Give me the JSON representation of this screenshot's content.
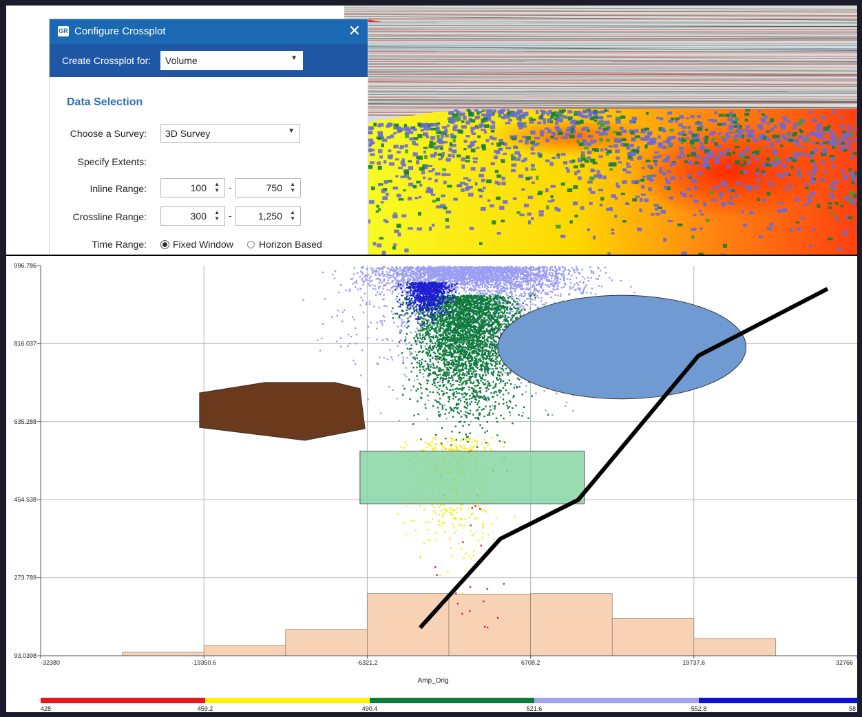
{
  "dialog": {
    "title": "Configure Crossplot",
    "app_icon_text": "GR",
    "close_glyph": "✕",
    "create_for_label": "Create Crossplot for:",
    "create_for_value": "Volume",
    "section_title": "Data Selection",
    "survey_label": "Choose a Survey:",
    "survey_value": "3D Survey",
    "extents_label": "Specify Extents:",
    "inline_label": "Inline Range:",
    "inline_from": "100",
    "inline_to": "750",
    "crossline_label": "Crossline Range:",
    "crossline_from": "300",
    "crossline_to": "1,250",
    "time_label": "Time Range:",
    "time_options": [
      "Fixed Window",
      "Horizon Based"
    ],
    "time_selected": "Fixed Window",
    "range_separator": "-",
    "dropdown_glyph": "▼",
    "spinner_glyph": "▲▼"
  },
  "icons": {
    "close": "close-icon",
    "dropdown": "chevron-down-icon",
    "spinner": "spinner-arrows-icon"
  },
  "chart_data": {
    "type": "scatter",
    "xlabel": "Amp_Orig",
    "ylabel": "",
    "xlim": [
      -32380,
      32766
    ],
    "ylim": [
      93.0398,
      996.786
    ],
    "x_ticks": [
      "-32380",
      "-19350.6",
      "-6321.2",
      "6708.2",
      "19737.6",
      "32766"
    ],
    "x_tick_values": [
      -32380,
      -19350.6,
      -6321.2,
      6708.2,
      19737.6,
      32766
    ],
    "y_ticks": [
      "93.0398",
      "273.789",
      "454.538",
      "635.288",
      "816.037",
      "996.786"
    ],
    "y_tick_values": [
      93.0398,
      273.789,
      454.538,
      635.288,
      816.037,
      996.786
    ],
    "grid": true,
    "histogram": {
      "bin_edges": [
        -25865,
        -19350.6,
        -12835.9,
        -6321.2,
        193.5,
        6708.2,
        13222.9,
        19737.6,
        26252.3
      ],
      "counts_y": [
        101,
        117,
        154,
        237,
        236,
        237,
        180,
        133,
        106
      ],
      "color": "#f8d2b4"
    },
    "polygons": [
      {
        "name": "brown-polygon",
        "color": "#6b3a1c",
        "points": [
          [
            -19700,
            702
          ],
          [
            -14500,
            726
          ],
          [
            -8900,
            726
          ],
          [
            -6900,
            712
          ],
          [
            -6500,
            619
          ],
          [
            -11300,
            592
          ],
          [
            -19700,
            622
          ]
        ]
      },
      {
        "name": "green-rectangle",
        "color": "#88d6a4",
        "points": [
          [
            -6900,
            567
          ],
          [
            11000,
            567
          ],
          [
            11000,
            445
          ],
          [
            -6900,
            445
          ]
        ]
      }
    ],
    "ellipse": {
      "name": "blue-ellipse",
      "color": "#6f9ad2",
      "cx": 14000,
      "cy": 808,
      "rx": 9900,
      "ry": 120
    },
    "polyline": {
      "name": "black-line",
      "color": "#000000",
      "points": [
        [
          -2100,
          158
        ],
        [
          4300,
          364
        ],
        [
          10500,
          454
        ],
        [
          20100,
          788
        ],
        [
          30400,
          943
        ]
      ]
    },
    "points_description_colors": {
      "lavender": "#9b9df2",
      "green": "#0d7a3a",
      "blue": "#1c1ed0",
      "yellow": "#f4f01e",
      "red": "#e21b1b"
    }
  },
  "colorbar": {
    "stops": [
      "428",
      "459.2",
      "490.4",
      "521.6",
      "552.8",
      "58"
    ],
    "colors": [
      "#e5161c",
      "#fff200",
      "#0a7d3c",
      "#a3a4f0",
      "#0a14d9"
    ]
  }
}
